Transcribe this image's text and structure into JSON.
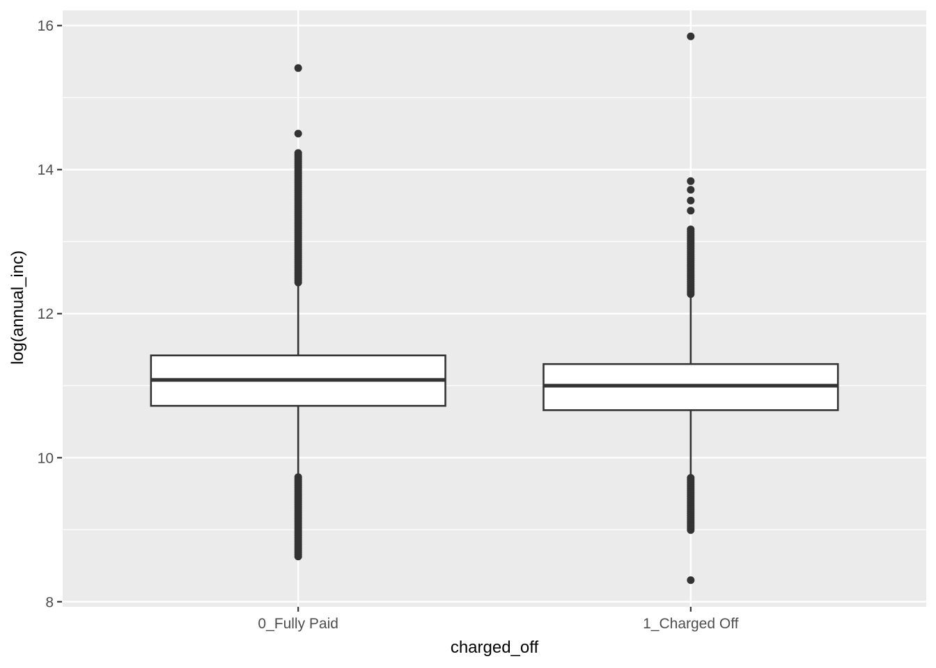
{
  "figure": {
    "kind": "ggplot-style boxplot",
    "legend": "none",
    "title": ""
  },
  "colors": {
    "page_bg": "#FFFFFF",
    "panel_bg": "#EBEBEB",
    "grid": "#FFFFFF",
    "box_fill": "#FFFFFF",
    "box_stroke": "#333333",
    "point": "#333333",
    "tick_mark": "#333333",
    "tick_label": "#4D4D4D",
    "axis_title": "#000000"
  },
  "chart_data": {
    "type": "boxplot",
    "title": "",
    "xlabel": "charged_off",
    "ylabel": "log(annual_inc)",
    "categories": [
      "0_Fully Paid",
      "1_Charged Off"
    ],
    "ylim": [
      7.93,
      16.21
    ],
    "yticks_major": [
      16,
      14,
      12,
      10,
      8
    ],
    "yticks_minor": [
      15,
      13,
      11,
      9
    ],
    "grid": "white major+minor horizontal lines and major vertical lines on grey panel",
    "legend_position": "none",
    "series": [
      {
        "name": "0_Fully Paid",
        "q1": 10.72,
        "median": 11.08,
        "q3": 11.42,
        "whisker_low": 9.73,
        "whisker_high": 12.42,
        "outlier_bands": [
          {
            "min": 12.42,
            "max": 14.23,
            "note": "dense overlapping outlier points"
          },
          {
            "min": 8.61,
            "max": 9.73,
            "note": "dense overlapping outlier points"
          }
        ],
        "outlier_points": [
          14.5,
          15.41
        ]
      },
      {
        "name": "1_Charged Off",
        "q1": 10.66,
        "median": 11.0,
        "q3": 11.3,
        "whisker_low": 9.72,
        "whisker_high": 12.25,
        "outlier_bands": [
          {
            "min": 12.25,
            "max": 13.17,
            "note": "dense overlapping outlier points"
          },
          {
            "min": 8.97,
            "max": 9.72,
            "note": "dense overlapping outlier points"
          }
        ],
        "outlier_points": [
          13.43,
          13.57,
          13.72,
          13.84,
          15.85,
          8.3
        ]
      }
    ]
  }
}
